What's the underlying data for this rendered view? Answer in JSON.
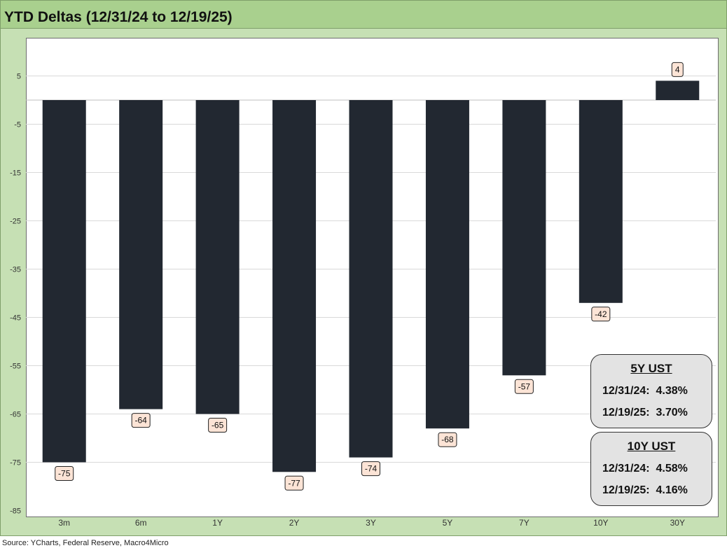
{
  "title": "YTD Deltas (12/31/24 to 12/19/25)",
  "source": "Source: YCharts, Federal Reserve, Macro4Micro",
  "colors": {
    "bar": "#222831",
    "label_fill": "#fce4d6",
    "title_bar": "#a9d08e",
    "frame": "#c6e0b4",
    "info_box": "#e3e3e3"
  },
  "chart_data": {
    "type": "bar",
    "title": "YTD Deltas (12/31/24 to 12/19/25)",
    "categories": [
      "3m",
      "6m",
      "1Y",
      "2Y",
      "3Y",
      "5Y",
      "7Y",
      "10Y",
      "30Y"
    ],
    "values": [
      -75,
      -64,
      -65,
      -77,
      -74,
      -68,
      -57,
      -42,
      4
    ],
    "data_labels": [
      "-75",
      "-64",
      "-65",
      "-77",
      "-74",
      "-68",
      "-57",
      "-42",
      "4"
    ],
    "yticks": [
      5,
      -5,
      -15,
      -25,
      -35,
      -45,
      -55,
      -65,
      -75,
      -85
    ],
    "ylim": [
      -85,
      10
    ],
    "xlabel": "",
    "ylabel": "",
    "grid": true,
    "legend": "none"
  },
  "info_boxes": [
    {
      "title": "5Y UST",
      "lines": [
        "12/31/24:  4.38%",
        "12/19/25:  3.70%"
      ]
    },
    {
      "title": "10Y UST",
      "lines": [
        "12/31/24:  4.58%",
        "12/19/25:  4.16%"
      ]
    }
  ]
}
